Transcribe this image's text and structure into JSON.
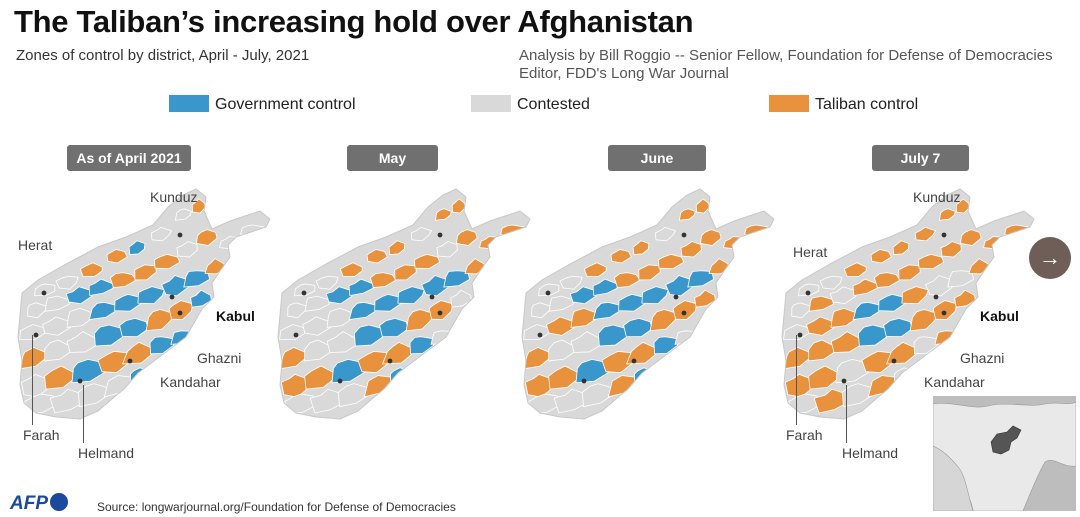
{
  "title": "The Taliban’s increasing hold over Afghanistan",
  "subtitle": "Zones of control by district, April - July, 2021",
  "credit": {
    "line1": "Analysis by Bill Roggio -- Senior Fellow, Foundation for Defense of Democracies",
    "line2": "Editor, FDD's Long War Journal"
  },
  "legend": [
    {
      "label": "Government control",
      "color": "#3a97cb"
    },
    {
      "label": "Contested",
      "color": "#d9d9d9"
    },
    {
      "label": "Taliban control",
      "color": "#e8923e"
    }
  ],
  "periods": [
    "As of April 2021",
    "May",
    "June",
    "July 7"
  ],
  "cities": {
    "kunduz": "Kunduz",
    "herat": "Herat",
    "kabul": "Kabul",
    "ghazni": "Ghazni",
    "kandahar": "Kandahar",
    "farah": "Farah",
    "helmand": "Helmand"
  },
  "next_icon": "arrow-right-icon",
  "logo": "AFP",
  "source": "Source: longwarjournal.org/Foundation for Defense of Democracies"
}
